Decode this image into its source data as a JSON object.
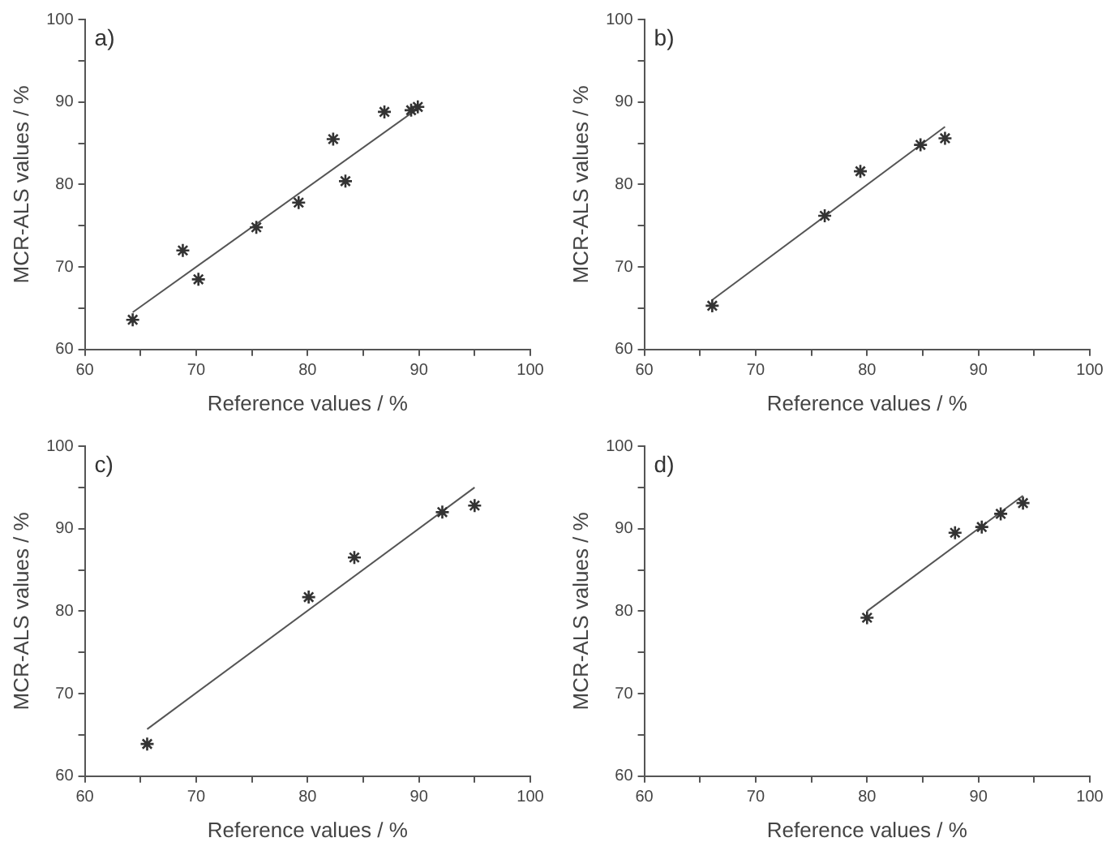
{
  "chart_data": [
    {
      "type": "scatter",
      "title": "a)",
      "xlabel": "Reference values / %",
      "ylabel": "MCR-ALS values / %",
      "xlim": [
        60,
        100
      ],
      "ylim": [
        60,
        100
      ],
      "xticks": [
        60,
        {
          "value": 65,
          "label": null
        },
        70,
        {
          "value": 75,
          "label": null
        },
        80,
        {
          "value": 85,
          "label": null
        },
        90,
        {
          "value": 95,
          "label": null
        },
        100
      ],
      "yticks": [
        60,
        {
          "value": 65,
          "label": null
        },
        70,
        {
          "value": 75,
          "label": null
        },
        80,
        {
          "value": 85,
          "label": null
        },
        90,
        {
          "value": 95,
          "label": null
        },
        100
      ],
      "grid": false,
      "legend": false,
      "series": [
        {
          "type": "scatter",
          "marker": "cross",
          "color": "#333333",
          "x": [
            64.3,
            68.8,
            70.2,
            75.4,
            79.2,
            82.3,
            83.4,
            86.9,
            89.3,
            89.9
          ],
          "values": [
            63.6,
            72.0,
            68.5,
            74.8,
            77.8,
            85.5,
            80.4,
            88.8,
            89.0,
            89.4
          ]
        },
        {
          "type": "line",
          "marker": "none",
          "color": "#555555",
          "x": [
            64.3,
            89.9
          ],
          "values": [
            64.5,
            89.2
          ]
        }
      ]
    },
    {
      "type": "scatter",
      "title": "b)",
      "xlabel": "Reference values / %",
      "ylabel": "MCR-ALS values / %",
      "xlim": [
        60,
        100
      ],
      "ylim": [
        60,
        100
      ],
      "xticks": [
        60,
        {
          "value": 65,
          "label": null
        },
        70,
        {
          "value": 75,
          "label": null
        },
        80,
        {
          "value": 85,
          "label": null
        },
        90,
        {
          "value": 95,
          "label": null
        },
        100
      ],
      "yticks": [
        60,
        {
          "value": 65,
          "label": null
        },
        70,
        {
          "value": 75,
          "label": null
        },
        80,
        {
          "value": 85,
          "label": null
        },
        90,
        {
          "value": 95,
          "label": null
        },
        100
      ],
      "grid": false,
      "legend": false,
      "series": [
        {
          "type": "scatter",
          "marker": "cross",
          "color": "#333333",
          "x": [
            66.1,
            76.2,
            79.4,
            84.8,
            87.0
          ],
          "values": [
            65.3,
            76.2,
            81.6,
            84.8,
            85.6
          ]
        },
        {
          "type": "line",
          "marker": "none",
          "color": "#555555",
          "x": [
            66.1,
            87.0
          ],
          "values": [
            66.0,
            87.0
          ]
        }
      ]
    },
    {
      "type": "scatter",
      "title": "c)",
      "xlabel": "Reference values / %",
      "ylabel": "MCR-ALS values / %",
      "xlim": [
        60,
        100
      ],
      "ylim": [
        60,
        100
      ],
      "xticks": [
        60,
        {
          "value": 65,
          "label": null
        },
        70,
        {
          "value": 75,
          "label": null
        },
        80,
        {
          "value": 85,
          "label": null
        },
        90,
        {
          "value": 95,
          "label": null
        },
        100
      ],
      "yticks": [
        60,
        {
          "value": 65,
          "label": null
        },
        70,
        {
          "value": 75,
          "label": null
        },
        80,
        {
          "value": 85,
          "label": null
        },
        90,
        {
          "value": 95,
          "label": null
        },
        100
      ],
      "grid": false,
      "legend": false,
      "series": [
        {
          "type": "scatter",
          "marker": "cross",
          "color": "#333333",
          "x": [
            65.6,
            80.1,
            84.2,
            92.1,
            95.0
          ],
          "values": [
            63.9,
            81.7,
            86.5,
            92.0,
            92.8
          ]
        },
        {
          "type": "line",
          "marker": "none",
          "color": "#555555",
          "x": [
            65.6,
            95.0
          ],
          "values": [
            65.7,
            95.0
          ]
        }
      ]
    },
    {
      "type": "scatter",
      "title": "d)",
      "xlabel": "Reference values / %",
      "ylabel": "MCR-ALS values / %",
      "xlim": [
        60,
        100
      ],
      "ylim": [
        60,
        100
      ],
      "xticks": [
        60,
        {
          "value": 65,
          "label": null
        },
        70,
        {
          "value": 75,
          "label": null
        },
        80,
        {
          "value": 85,
          "label": null
        },
        90,
        {
          "value": 95,
          "label": null
        },
        100
      ],
      "yticks": [
        60,
        {
          "value": 65,
          "label": null
        },
        70,
        {
          "value": 75,
          "label": null
        },
        80,
        {
          "value": 85,
          "label": null
        },
        90,
        {
          "value": 95,
          "label": null
        },
        100
      ],
      "grid": false,
      "legend": false,
      "series": [
        {
          "type": "scatter",
          "marker": "cross",
          "color": "#333333",
          "x": [
            80.0,
            87.9,
            90.3,
            92.0,
            94.0
          ],
          "values": [
            79.2,
            89.5,
            90.2,
            91.8,
            93.1
          ]
        },
        {
          "type": "line",
          "marker": "none",
          "color": "#555555",
          "x": [
            80.0,
            94.0
          ],
          "values": [
            80.0,
            94.0
          ]
        }
      ]
    }
  ]
}
